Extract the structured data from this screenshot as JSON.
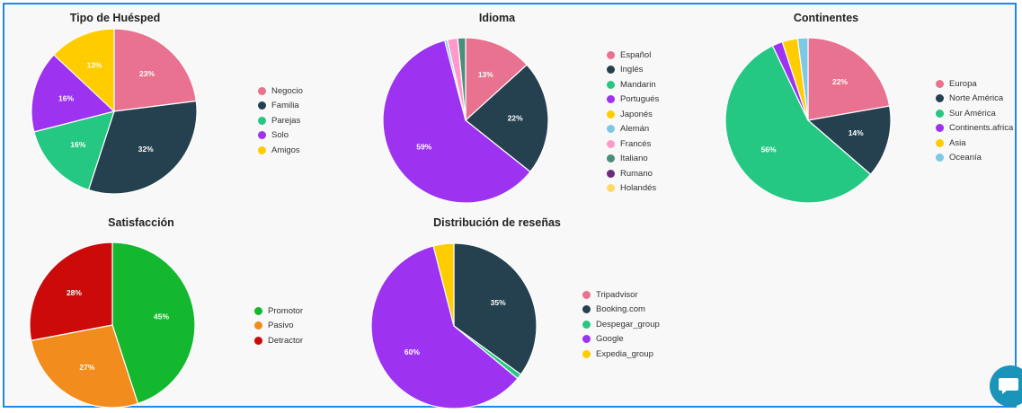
{
  "chart_data": [
    {
      "type": "pie",
      "title": "Tipo de Huésped",
      "labels": [
        "Negocio",
        "Familia",
        "Parejas",
        "Solo",
        "Amigos"
      ],
      "values": [
        23,
        32,
        16,
        16,
        13
      ],
      "colors": [
        "#e8728f",
        "#25404f",
        "#25c883",
        "#9d33f0",
        "#ffcc00"
      ],
      "slice_labels": [
        "23%",
        "32%",
        "16%",
        "16%",
        "13%"
      ],
      "legend": "right"
    },
    {
      "type": "pie",
      "title": "Idioma",
      "labels": [
        "Español",
        "Inglés",
        "Mandarin",
        "Portugués",
        "Japonés",
        "Alemán",
        "Francés",
        "Italiano",
        "Rumano",
        "Holandés"
      ],
      "values": [
        13,
        22,
        0,
        59,
        0,
        0.5,
        2,
        1.5,
        0,
        0
      ],
      "colors": [
        "#e8728f",
        "#25404f",
        "#25c883",
        "#9d33f0",
        "#ffcc00",
        "#7ec8e3",
        "#ff99cc",
        "#4a8f7a",
        "#6b2d7a",
        "#ffd966"
      ],
      "slice_labels": [
        "13%",
        "22%",
        "",
        "59%",
        "",
        "",
        "",
        "",
        "",
        ""
      ],
      "legend": "right"
    },
    {
      "type": "pie",
      "title": "Continentes",
      "labels": [
        "Europa",
        "Norte América",
        "Sur América",
        "Continents.africa",
        "Asia",
        "Oceanía"
      ],
      "values": [
        22,
        14,
        56,
        2,
        3,
        2
      ],
      "colors": [
        "#e8728f",
        "#25404f",
        "#25c883",
        "#9d33f0",
        "#ffcc00",
        "#7ec8e3"
      ],
      "slice_labels": [
        "22%",
        "14%",
        "56%",
        "",
        "",
        ""
      ],
      "legend": "right"
    },
    {
      "type": "pie",
      "title": "Satisfacción",
      "labels": [
        "Promotor",
        "Pasivo",
        "Detractor"
      ],
      "values": [
        45,
        27,
        28
      ],
      "colors": [
        "#13b82e",
        "#f28c1c",
        "#cc0a0a"
      ],
      "slice_labels": [
        "45%",
        "27%",
        "28%"
      ],
      "legend": "right"
    },
    {
      "type": "pie",
      "title": "Distribución de reseñas",
      "labels": [
        "Tripadvisor",
        "Booking.com",
        "Despegar_group",
        "Google",
        "Expedia_group"
      ],
      "values": [
        0,
        35,
        1,
        60,
        4
      ],
      "colors": [
        "#e8728f",
        "#25404f",
        "#25c883",
        "#9d33f0",
        "#ffcc00"
      ],
      "slice_labels": [
        "",
        "35%",
        "",
        "60%",
        ""
      ],
      "legend": "right"
    }
  ],
  "icons": {
    "chat": "chat-bubble-icon"
  }
}
